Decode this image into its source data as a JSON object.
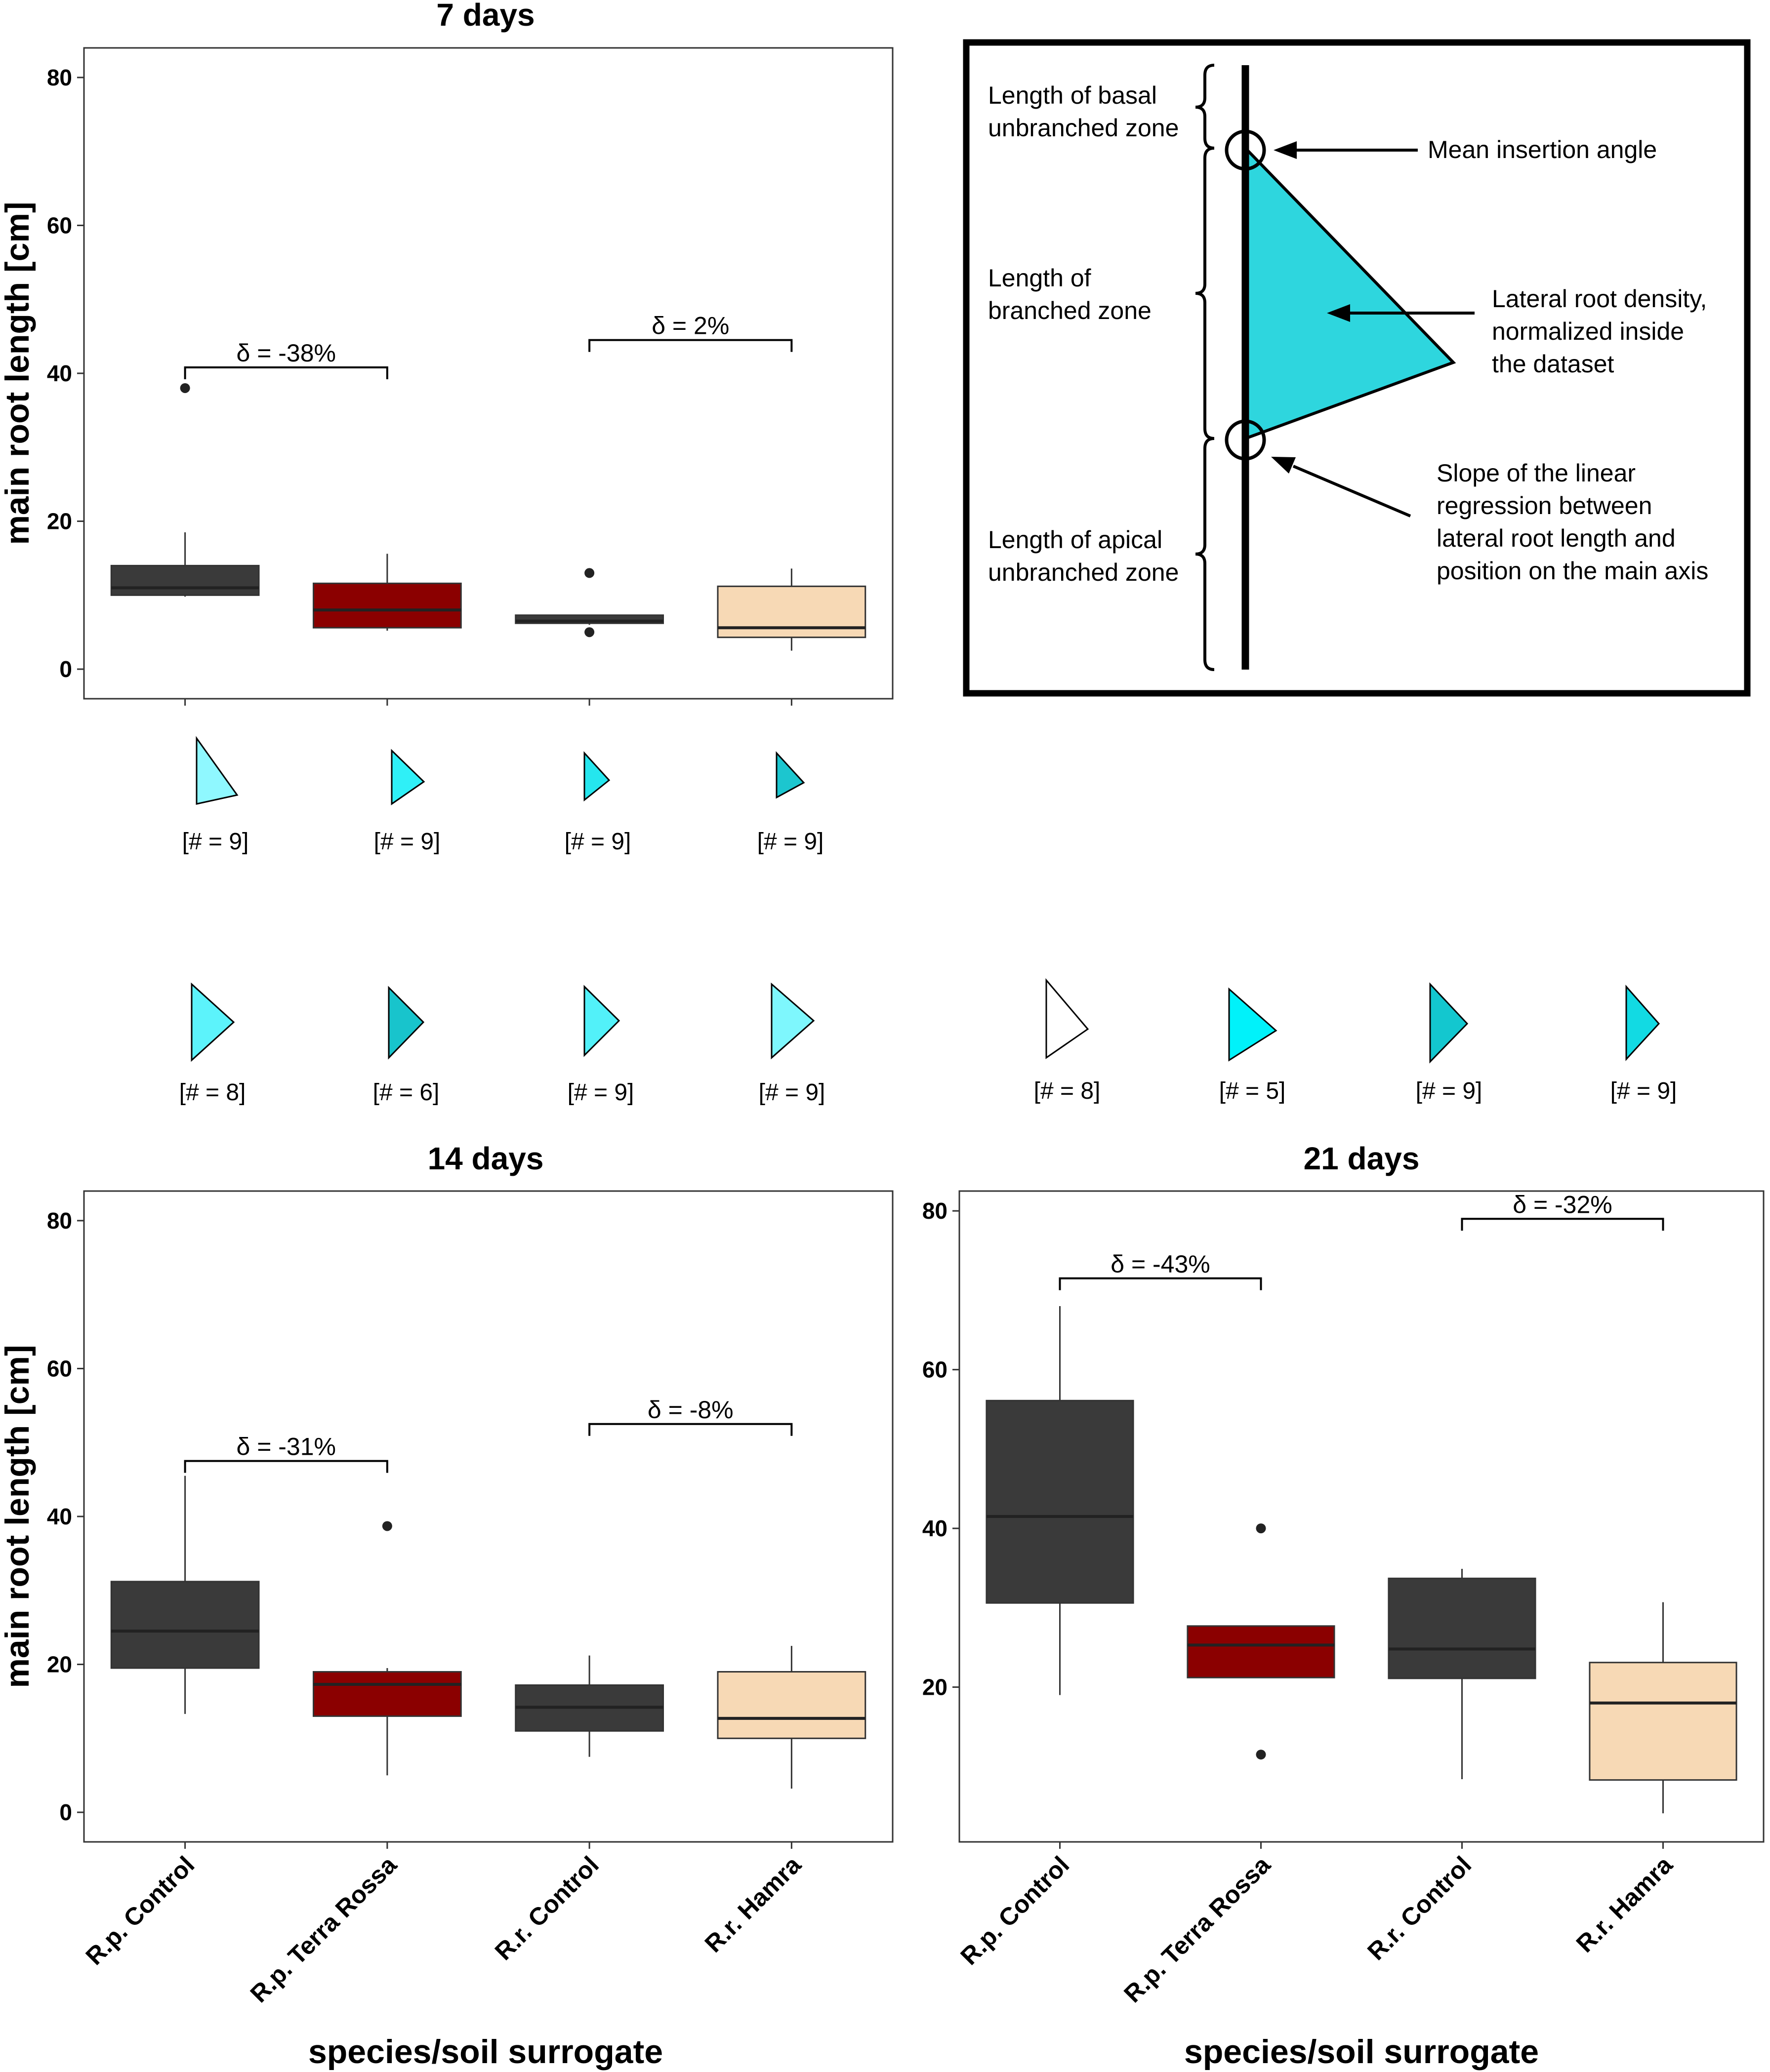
{
  "chart_data": [
    {
      "id": "d7",
      "type": "box",
      "title": "7 days",
      "xlabel": "",
      "ylabel": "main root length [cm]",
      "ylim": [
        -4,
        84
      ],
      "yticks": [
        0,
        20,
        40,
        60,
        80
      ],
      "categories": [
        "R.p. Control",
        "R.p. Terra Rossa",
        "R.r. Control",
        "R.r. Hamra"
      ],
      "boxes": [
        {
          "name": "R.p. Control",
          "min": 9.8,
          "q1": 10,
          "median": 11,
          "q3": 14,
          "max": 18.5,
          "outliers": [
            38
          ],
          "color": "#3a3a3a"
        },
        {
          "name": "R.p. Terra Rossa",
          "min": 5.2,
          "q1": 5.6,
          "median": 8,
          "q3": 11.6,
          "max": 15.6,
          "outliers": [],
          "color": "#8b0000"
        },
        {
          "name": "R.r. Control",
          "min": 6,
          "q1": 6.2,
          "median": 6.5,
          "q3": 7.3,
          "max": 7.3,
          "outliers": [
            13,
            5
          ],
          "color": "#3a3a3a"
        },
        {
          "name": "R.r. Hamra",
          "min": 2.5,
          "q1": 4.3,
          "median": 5.6,
          "q3": 11.2,
          "max": 13.6,
          "outliers": [],
          "color": "#f7d9b5"
        }
      ],
      "brackets": [
        {
          "from": 0,
          "to": 1,
          "y": 40.8,
          "label": "δ = -38%"
        },
        {
          "from": 2,
          "to": 3,
          "y": 44.5,
          "label": "δ = 2%"
        }
      ]
    },
    {
      "id": "d14",
      "type": "box",
      "title": "14 days",
      "xlabel": "species/soil surrogate",
      "ylabel": "main root length [cm]",
      "ylim": [
        -4,
        84
      ],
      "yticks": [
        0,
        20,
        40,
        60,
        80
      ],
      "categories": [
        "R.p. Control",
        "R.p. Terra Rossa",
        "R.r. Control",
        "R.r. Hamra"
      ],
      "boxes": [
        {
          "name": "R.p. Control",
          "min": 13.3,
          "q1": 19.5,
          "median": 24.5,
          "q3": 31.2,
          "max": 45.5,
          "outliers": [],
          "color": "#3a3a3a"
        },
        {
          "name": "R.p. Terra Rossa",
          "min": 5,
          "q1": 13,
          "median": 17.3,
          "q3": 19,
          "max": 19.5,
          "outliers": [
            38.7
          ],
          "color": "#8b0000"
        },
        {
          "name": "R.r. Control",
          "min": 7.5,
          "q1": 11,
          "median": 14.2,
          "q3": 17.2,
          "max": 21.2,
          "outliers": [],
          "color": "#3a3a3a"
        },
        {
          "name": "R.r. Hamra",
          "min": 3.2,
          "q1": 10,
          "median": 12.7,
          "q3": 19,
          "max": 22.5,
          "outliers": [],
          "color": "#f7d9b5"
        }
      ],
      "brackets": [
        {
          "from": 0,
          "to": 1,
          "y": 47.5,
          "label": "δ = -31%"
        },
        {
          "from": 2,
          "to": 3,
          "y": 52.5,
          "label": "δ = -8%"
        }
      ]
    },
    {
      "id": "d21",
      "type": "box",
      "title": "21 days",
      "xlabel": "species/soil surrogate",
      "ylabel": "",
      "ylim": [
        0.5,
        82.5
      ],
      "yticks": [
        20,
        40,
        60,
        80
      ],
      "categories": [
        "R.p. Control",
        "R.p. Terra Rossa",
        "R.r. Control",
        "R.r. Hamra"
      ],
      "boxes": [
        {
          "name": "R.p. Control",
          "min": 19,
          "q1": 30.6,
          "median": 41.5,
          "q3": 56.1,
          "max": 68,
          "outliers": [],
          "color": "#3a3a3a"
        },
        {
          "name": "R.p. Terra Rossa",
          "min": 21.2,
          "q1": 21.2,
          "median": 25.3,
          "q3": 27.7,
          "max": 27.7,
          "outliers": [
            40,
            11.5
          ],
          "color": "#8b0000"
        },
        {
          "name": "R.r. Control",
          "min": 8.4,
          "q1": 21.1,
          "median": 24.8,
          "q3": 33.7,
          "max": 34.9,
          "outliers": [],
          "color": "#3a3a3a"
        },
        {
          "name": "R.r. Hamra",
          "min": 4.1,
          "q1": 8.3,
          "median": 18,
          "q3": 23.1,
          "max": 30.7,
          "outliers": [],
          "color": "#f7d9b5"
        }
      ],
      "brackets": [
        {
          "from": 0,
          "to": 1,
          "y": 71.5,
          "label": "δ = -43%"
        },
        {
          "from": 2,
          "to": 3,
          "y": 79,
          "label": "δ = -32%"
        }
      ]
    }
  ],
  "glyph_rows": [
    {
      "id": "g7",
      "glyphs": [
        {
          "color": "#8ff8ff",
          "count": "[# = 9]"
        },
        {
          "color": "#2ff0f7",
          "count": "[# = 9]"
        },
        {
          "color": "#25e6ee",
          "count": "[# = 9]"
        },
        {
          "color": "#1cc6cf",
          "count": "[# = 9]"
        }
      ]
    },
    {
      "id": "g14",
      "glyphs": [
        {
          "color": "#5cf3fb",
          "count": "[# = 8]"
        },
        {
          "color": "#18c4cc",
          "count": "[# = 6]"
        },
        {
          "color": "#52f1f9",
          "count": "[# = 9]"
        },
        {
          "color": "#7ef7fd",
          "count": "[# = 9]"
        }
      ]
    },
    {
      "id": "g21",
      "glyphs": [
        {
          "color": "#ffffff",
          "count": "[# = 8]"
        },
        {
          "color": "#00f2fa",
          "count": "[# = 5]"
        },
        {
          "color": "#13c7cf",
          "count": "[# = 9]"
        },
        {
          "color": "#12dae3",
          "count": "[# = 9]"
        }
      ]
    }
  ],
  "schematic": {
    "left_labels": [
      [
        "Length of basal",
        "unbranched zone"
      ],
      [
        "Length of",
        "branched zone"
      ],
      [
        "Length of apical",
        "unbranched zone"
      ]
    ],
    "right_labels": [
      [
        "Mean insertion angle"
      ],
      [
        "Lateral root density,",
        "normalized inside",
        "the dataset"
      ],
      [
        "Slope of the linear",
        "regression between",
        "lateral root length and",
        "position on the main axis"
      ]
    ],
    "triangle_color": "#2ed6de"
  }
}
